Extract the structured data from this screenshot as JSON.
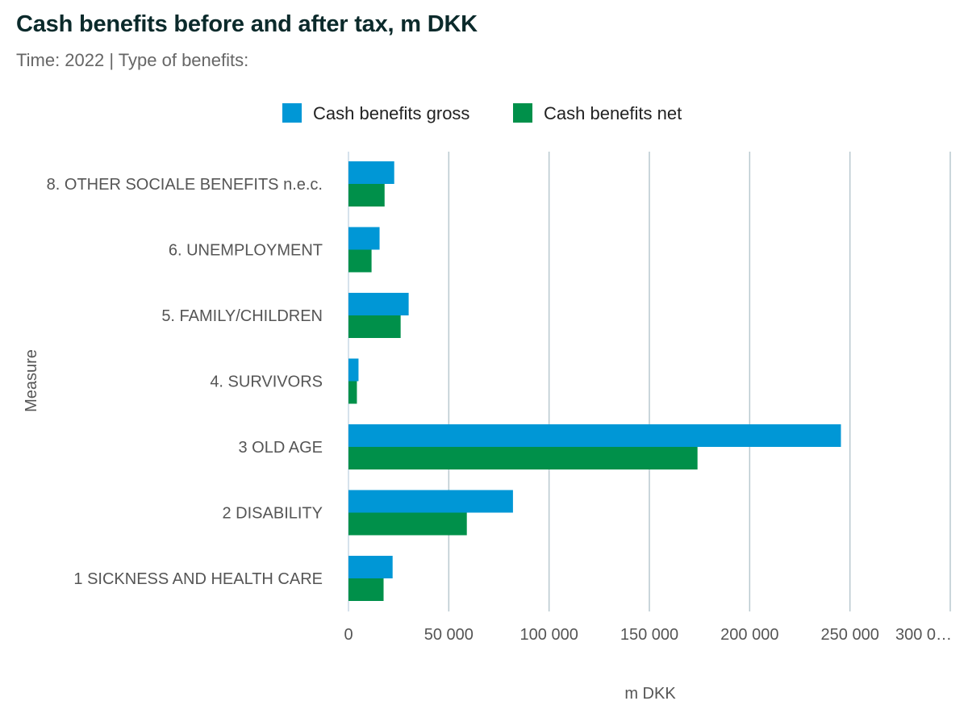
{
  "header": {
    "title": "Cash benefits before and after tax, m DKK",
    "subtitle_time": "Time: 2022",
    "subtitle_sep": " | ",
    "subtitle_type": "Type of benefits:"
  },
  "colors": {
    "gross": "#0097d6",
    "net": "#00904a",
    "grid": "#b9c9cf",
    "axis": "#c8d8e6"
  },
  "chart_data": {
    "type": "bar",
    "orientation": "horizontal",
    "title": "Cash benefits before and after tax, m DKK",
    "subtitle": "Time: 2022 | Type of benefits:",
    "xlabel": "m DKK",
    "ylabel": "Measure",
    "xlim": [
      0,
      300000
    ],
    "xticks": [
      0,
      50000,
      100000,
      150000,
      200000,
      250000,
      300000
    ],
    "xtick_labels": [
      "0",
      "50 000",
      "100 000",
      "150 000",
      "200 000",
      "250 000",
      "300 0…"
    ],
    "categories": [
      "8. OTHER SOCIALE BENEFITS n.e.c.",
      "6. UNEMPLOYMENT",
      "5. FAMILY/CHILDREN",
      "4. SURVIVORS",
      "3 OLD AGE",
      "2 DISABILITY",
      "1 SICKNESS AND HEALTH CARE"
    ],
    "series": [
      {
        "name": "Cash benefits gross",
        "color": "#0097d6",
        "values": [
          22800,
          15500,
          30000,
          5000,
          245500,
          82000,
          22000
        ]
      },
      {
        "name": "Cash benefits net",
        "color": "#00904a",
        "values": [
          18000,
          11500,
          26000,
          4200,
          174000,
          59000,
          17500
        ]
      }
    ],
    "legend_position": "top-center",
    "grid": true
  }
}
